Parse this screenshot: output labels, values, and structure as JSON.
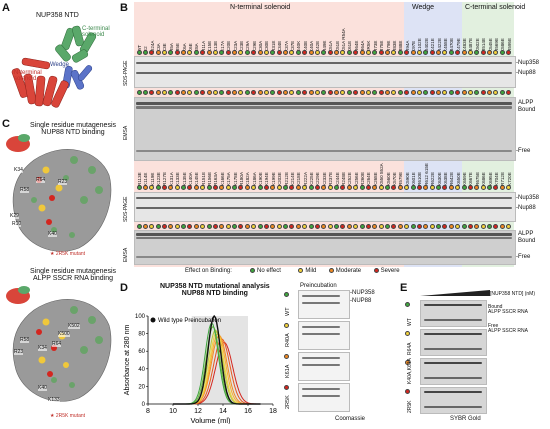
{
  "panels": {
    "A": {
      "letter": "A",
      "title": "NUP358 NTD",
      "labels": {
        "c_term": "C-terminal\nsolenoid",
        "wedge": "Wedge",
        "n_term": "N-terminal\nsolenoid"
      }
    },
    "B": {
      "letter": "B",
      "regions": {
        "n_term": "N-terminal solenoid",
        "wedge": "Wedge",
        "c_term": "C-terminal solenoid"
      },
      "row_labels": {
        "sds_page": "SDS-PAGE",
        "emsa": "EMSA"
      },
      "right_labels": {
        "nup358": "-Nup358",
        "nup88": "-Nup88",
        "alpp": "ALPP",
        "bound": "Bound",
        "free": "-Free"
      },
      "mutants_top": [
        "WT",
        "E2",
        "D24A",
        "K3A",
        "K3E",
        "R5A",
        "R5E",
        "K6A",
        "K6E",
        "E8A",
        "R11A",
        "K15E",
        "K13E",
        "E17A",
        "K20E",
        "K23A",
        "K23E",
        "K29A",
        "K29E",
        "K30A",
        "K30E",
        "R31E",
        "K34E",
        "K37A",
        "K37E",
        "E40K",
        "K40E",
        "K40A",
        "K42E",
        "R49E",
        "K51A",
        "K51E",
        "K51A R54A",
        "K61E",
        "R64E",
        "R64A",
        "2R5K",
        "R73E",
        "R75E",
        "R79E",
        "R83E",
        "R88E",
        "R94A",
        "K97E",
        "K102E",
        "D402E",
        "K421E",
        "R422E",
        "K458E",
        "R470E",
        "K479E",
        "K483E",
        "R487E",
        "K502E",
        "R514E",
        "K545E",
        "R569E",
        "K586E",
        "R595E"
      ],
      "mutants_bottom": [
        "R113E",
        "K114E",
        "K119E",
        "K123E",
        "R127E",
        "K131A",
        "K133E",
        "K135E",
        "K140A",
        "K145E",
        "R151E",
        "R156E",
        "R163A",
        "K166E",
        "K175A",
        "K178E",
        "R180A",
        "K182A",
        "K186A",
        "K190E",
        "K194E",
        "K199E",
        "K203E",
        "R212E",
        "K214E",
        "K218E",
        "R222A",
        "K225E",
        "K229E",
        "K233E",
        "R237E",
        "K244E",
        "R248E",
        "K252E",
        "K256E",
        "R260E",
        "K264E",
        "K268E",
        "K550 552A",
        "K560E",
        "K570E",
        "R579E",
        "K590E",
        "K601E",
        "R610E",
        "R612 615E",
        "R622E",
        "K630E",
        "K638E",
        "R642E",
        "K650E",
        "K659E",
        "K667E",
        "R675E",
        "K686E",
        "K695E",
        "K704E",
        "R712E",
        "K720E"
      ],
      "legend": {
        "title": "Effect on Binding:",
        "items": [
          {
            "label": "No effect",
            "color": "#3fa63f"
          },
          {
            "label": "Mild",
            "color": "#f2d23c"
          },
          {
            "label": "Moderate",
            "color": "#f08a24"
          },
          {
            "label": "Severe",
            "color": "#d4261f"
          }
        ]
      }
    },
    "C": {
      "letter": "C",
      "upper_title": "Single residue mutagenesis\nNUP88 NTD binding",
      "lower_title": "Single residue mutagenesis\nALPP SSCR RNA binding",
      "upper_residues": [
        "R58",
        "K34",
        "R64",
        "R23",
        "K29",
        "R10",
        "K40"
      ],
      "lower_residues": [
        "K502",
        "K500",
        "R58",
        "R64",
        "K34",
        "R23",
        "K40",
        "K133"
      ],
      "footnote": "2R5K mutant"
    },
    "D": {
      "letter": "D",
      "title": "NUP358 NTD mutational analysis\nNUP88 NTD binding",
      "legend_wt": "Wild type Preincubation",
      "xlabel": "Volume (ml)",
      "ylabel": "Absorbance at 280 nm",
      "xticks": [
        "8",
        "10",
        "12",
        "14",
        "16",
        "18"
      ],
      "yticks": [
        "0",
        "20",
        "40",
        "60",
        "80",
        "100"
      ],
      "gel_title": "Preincubation",
      "gel_labels": {
        "nup358": "-NUP358",
        "nup88": "-NUP88"
      },
      "gel_rows": [
        "WT",
        "R40A",
        "K61A",
        "2R5K"
      ],
      "gel_footer": "Coomassie"
    },
    "E": {
      "letter": "E",
      "header": "[NUP358 NTD] (nM)",
      "labels": {
        "bound": "Bound\nALPP SSCR RNA",
        "free": "Free\nALPP SSCR RNA"
      },
      "rows": [
        "WT",
        "R64A",
        "K40A,K61A",
        "2R5K"
      ],
      "footer": "SYBR Gold"
    }
  },
  "chart_data": {
    "type": "line",
    "title": "NUP358 NTD mutational analysis\nNUP88 NTD binding",
    "xlabel": "Volume (ml)",
    "ylabel": "Absorbance at 280 nm",
    "xlim": [
      8,
      18
    ],
    "ylim": [
      0,
      100
    ],
    "legend": "top-left",
    "series": [
      {
        "name": "Wild type Preincubation",
        "color": "#111111",
        "peak_x": 13.3,
        "peak_y": 100,
        "width": 0.9
      },
      {
        "color": "#3fa63f",
        "peak_x": 13.1,
        "peak_y": 92,
        "width": 0.95
      },
      {
        "color": "#6bb83a",
        "peak_x": 13.2,
        "peak_y": 88,
        "width": 0.95
      },
      {
        "color": "#b9c93a",
        "peak_x": 13.4,
        "peak_y": 84,
        "width": 1.0
      },
      {
        "color": "#f2d23c",
        "peak_x": 13.5,
        "peak_y": 82,
        "width": 1.0
      },
      {
        "color": "#f6b030",
        "peak_x": 13.6,
        "peak_y": 80,
        "width": 1.05
      },
      {
        "color": "#f08a24",
        "peak_x": 13.7,
        "peak_y": 78,
        "width": 1.1
      },
      {
        "color": "#e6581f",
        "peak_x": 13.9,
        "peak_y": 74,
        "width": 1.15
      },
      {
        "color": "#d4261f",
        "peak_x": 14.1,
        "peak_y": 70,
        "width": 1.2
      }
    ]
  }
}
